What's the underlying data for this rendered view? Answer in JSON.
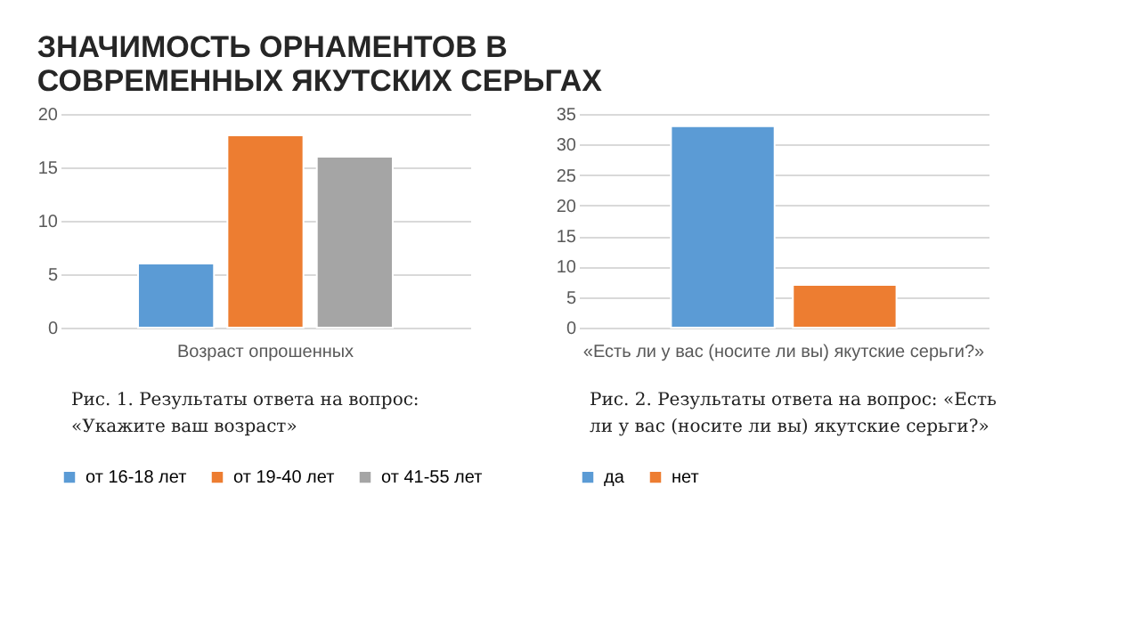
{
  "chart_data": [
    {
      "type": "bar",
      "title": "ЗНАЧИМОСТЬ ОРНАМЕНТОВ В СОВРЕМЕННЫХ ЯКУТСКИХ СЕРЬГАХ",
      "categories": [
        "Возраст опрошенных"
      ],
      "series": [
        {
          "name": "от 16-18 лет",
          "color": "#5b9bd5",
          "values": [
            6
          ]
        },
        {
          "name": "от 19-40 лет",
          "color": "#ed7d31",
          "values": [
            18
          ]
        },
        {
          "name": "от 41-55 лет",
          "color": "#a5a5a5",
          "values": [
            16
          ]
        }
      ],
      "ylim": [
        0,
        20
      ],
      "yticks": [
        0,
        5,
        10,
        15,
        20
      ],
      "grid": "y",
      "legend": "bottom",
      "annotations": [
        "Рис. 1. Результаты ответа на вопрос: «Укажите ваш возраст»"
      ]
    },
    {
      "type": "bar",
      "categories": [
        "«Есть ли у вас (носите ли вы) якутские серьги?»"
      ],
      "series": [
        {
          "name": "да",
          "color": "#5b9bd5",
          "values": [
            33
          ]
        },
        {
          "name": "нет",
          "color": "#ed7d31",
          "values": [
            7
          ]
        }
      ],
      "ylim": [
        0,
        35
      ],
      "yticks": [
        0,
        5,
        10,
        15,
        20,
        25,
        30,
        35
      ],
      "grid": "y",
      "legend": "bottom",
      "annotations": [
        "Рис. 2. Результаты ответа на вопрос: «Есть ли у вас (носите ли вы) якутские серьги?»"
      ]
    }
  ]
}
